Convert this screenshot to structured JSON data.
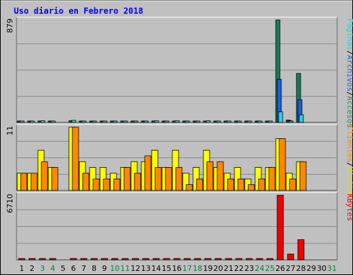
{
  "title": "Uso diario en Febrero 2018",
  "colors": {
    "background": "#c0c0c0",
    "title": "#0000ff",
    "visits": "#008080",
    "pages": "#3355dd",
    "files": "#1e5fd6",
    "hits": "#66eeff",
    "clients": "#ff8800",
    "visitors": "#ffff00",
    "kbytes": "#ff0000",
    "weekend": "#008040",
    "weekday": "#000000",
    "grid": "#888888"
  },
  "chart_data": [
    {
      "type": "bar",
      "panel": "top",
      "ymax_label": "879",
      "ylim": [
        0,
        879
      ],
      "legend": [
        {
          "name": "Accesos",
          "color": "#2e8b57"
        },
        {
          "name": "/",
          "color": "#000000"
        },
        {
          "name": "Archivos",
          "color": "#1e5fd6"
        },
        {
          "name": "/",
          "color": "#000000"
        },
        {
          "name": "Páginas",
          "color": "#33ccdd"
        }
      ],
      "categories": [
        "1",
        "2",
        "3",
        "4",
        "5",
        "6",
        "7",
        "8",
        "9",
        "10",
        "11",
        "12",
        "13",
        "14",
        "15",
        "16",
        "17",
        "18",
        "19",
        "20",
        "21",
        "22",
        "23",
        "24",
        "25",
        "26",
        "27",
        "28",
        "29",
        "30",
        "31"
      ],
      "series": [
        {
          "name": "Accesos",
          "color": "#1b7a5a",
          "values": [
            8,
            9,
            12,
            10,
            0,
            14,
            11,
            9,
            7,
            7,
            9,
            8,
            9,
            10,
            9,
            10,
            8,
            9,
            10,
            9,
            8,
            9,
            8,
            8,
            9,
            879,
            20,
            420,
            0,
            0,
            0
          ]
        },
        {
          "name": "Archivos",
          "color": "#1e5fd6",
          "values": [
            5,
            6,
            9,
            7,
            0,
            11,
            8,
            6,
            5,
            5,
            6,
            6,
            6,
            7,
            6,
            7,
            5,
            6,
            7,
            6,
            5,
            6,
            5,
            5,
            6,
            370,
            15,
            195,
            0,
            0,
            0
          ]
        },
        {
          "name": "Páginas",
          "color": "#33ccee",
          "values": [
            3,
            4,
            14,
            5,
            0,
            18,
            4,
            3,
            3,
            3,
            3,
            3,
            3,
            14,
            3,
            14,
            3,
            4,
            14,
            4,
            3,
            3,
            3,
            3,
            3,
            90,
            8,
            65,
            0,
            0,
            0
          ]
        }
      ]
    },
    {
      "type": "bar",
      "panel": "middle",
      "ymax_label": "11",
      "ylim": [
        0,
        11
      ],
      "legend": [
        {
          "name": "Visitas",
          "color": "#dddd00"
        },
        {
          "name": "/",
          "color": "#000000"
        },
        {
          "name": "Clientes",
          "color": "#ff8800"
        }
      ],
      "categories": [
        "1",
        "2",
        "3",
        "4",
        "5",
        "6",
        "7",
        "8",
        "9",
        "10",
        "11",
        "12",
        "13",
        "14",
        "15",
        "16",
        "17",
        "18",
        "19",
        "20",
        "21",
        "22",
        "23",
        "24",
        "25",
        "26",
        "27",
        "28",
        "29",
        "30",
        "31"
      ],
      "series": [
        {
          "name": "Visitas",
          "color": "#ffff00",
          "values": [
            3,
            3,
            7,
            4,
            0,
            11,
            5,
            4,
            4,
            3,
            4,
            5,
            5,
            7,
            4,
            7,
            3,
            4,
            7,
            4,
            3,
            4,
            2,
            4,
            4,
            9,
            3,
            5,
            0,
            0,
            0
          ]
        },
        {
          "name": "Clientes",
          "color": "#ff8800",
          "values": [
            3,
            3,
            5,
            4,
            0,
            11,
            3,
            2,
            2,
            2,
            4,
            3,
            6,
            4,
            4,
            4,
            1,
            2,
            5,
            5,
            2,
            2,
            1,
            2,
            4,
            9,
            2,
            5,
            0,
            0,
            0
          ]
        }
      ]
    },
    {
      "type": "bar",
      "panel": "bottom",
      "ymax_label": "6710",
      "ylim": [
        0,
        6710
      ],
      "legend": [
        {
          "name": "KBytes",
          "color": "#ff0000"
        }
      ],
      "categories": [
        "1",
        "2",
        "3",
        "4",
        "5",
        "6",
        "7",
        "8",
        "9",
        "10",
        "11",
        "12",
        "13",
        "14",
        "15",
        "16",
        "17",
        "18",
        "19",
        "20",
        "21",
        "22",
        "23",
        "24",
        "25",
        "26",
        "27",
        "28",
        "29",
        "30",
        "31"
      ],
      "series": [
        {
          "name": "KBytes",
          "color": "#ee0000",
          "values": [
            80,
            80,
            80,
            80,
            0,
            150,
            140,
            80,
            80,
            80,
            80,
            80,
            80,
            80,
            80,
            80,
            80,
            80,
            80,
            80,
            80,
            80,
            80,
            80,
            80,
            6710,
            600,
            2100,
            0,
            0,
            0
          ]
        }
      ]
    }
  ],
  "xaxis": {
    "labels": [
      "1",
      "2",
      "3",
      "4",
      "5",
      "6",
      "7",
      "8",
      "9",
      "10",
      "11",
      "12",
      "13",
      "14",
      "15",
      "16",
      "17",
      "18",
      "19",
      "20",
      "21",
      "22",
      "23",
      "24",
      "25",
      "26",
      "27",
      "28",
      "29",
      "30",
      "31"
    ],
    "weekend": [
      false,
      false,
      true,
      true,
      false,
      false,
      false,
      false,
      false,
      true,
      true,
      false,
      false,
      false,
      false,
      false,
      true,
      true,
      false,
      false,
      false,
      false,
      false,
      true,
      true,
      false,
      false,
      false,
      false,
      false,
      true
    ]
  }
}
